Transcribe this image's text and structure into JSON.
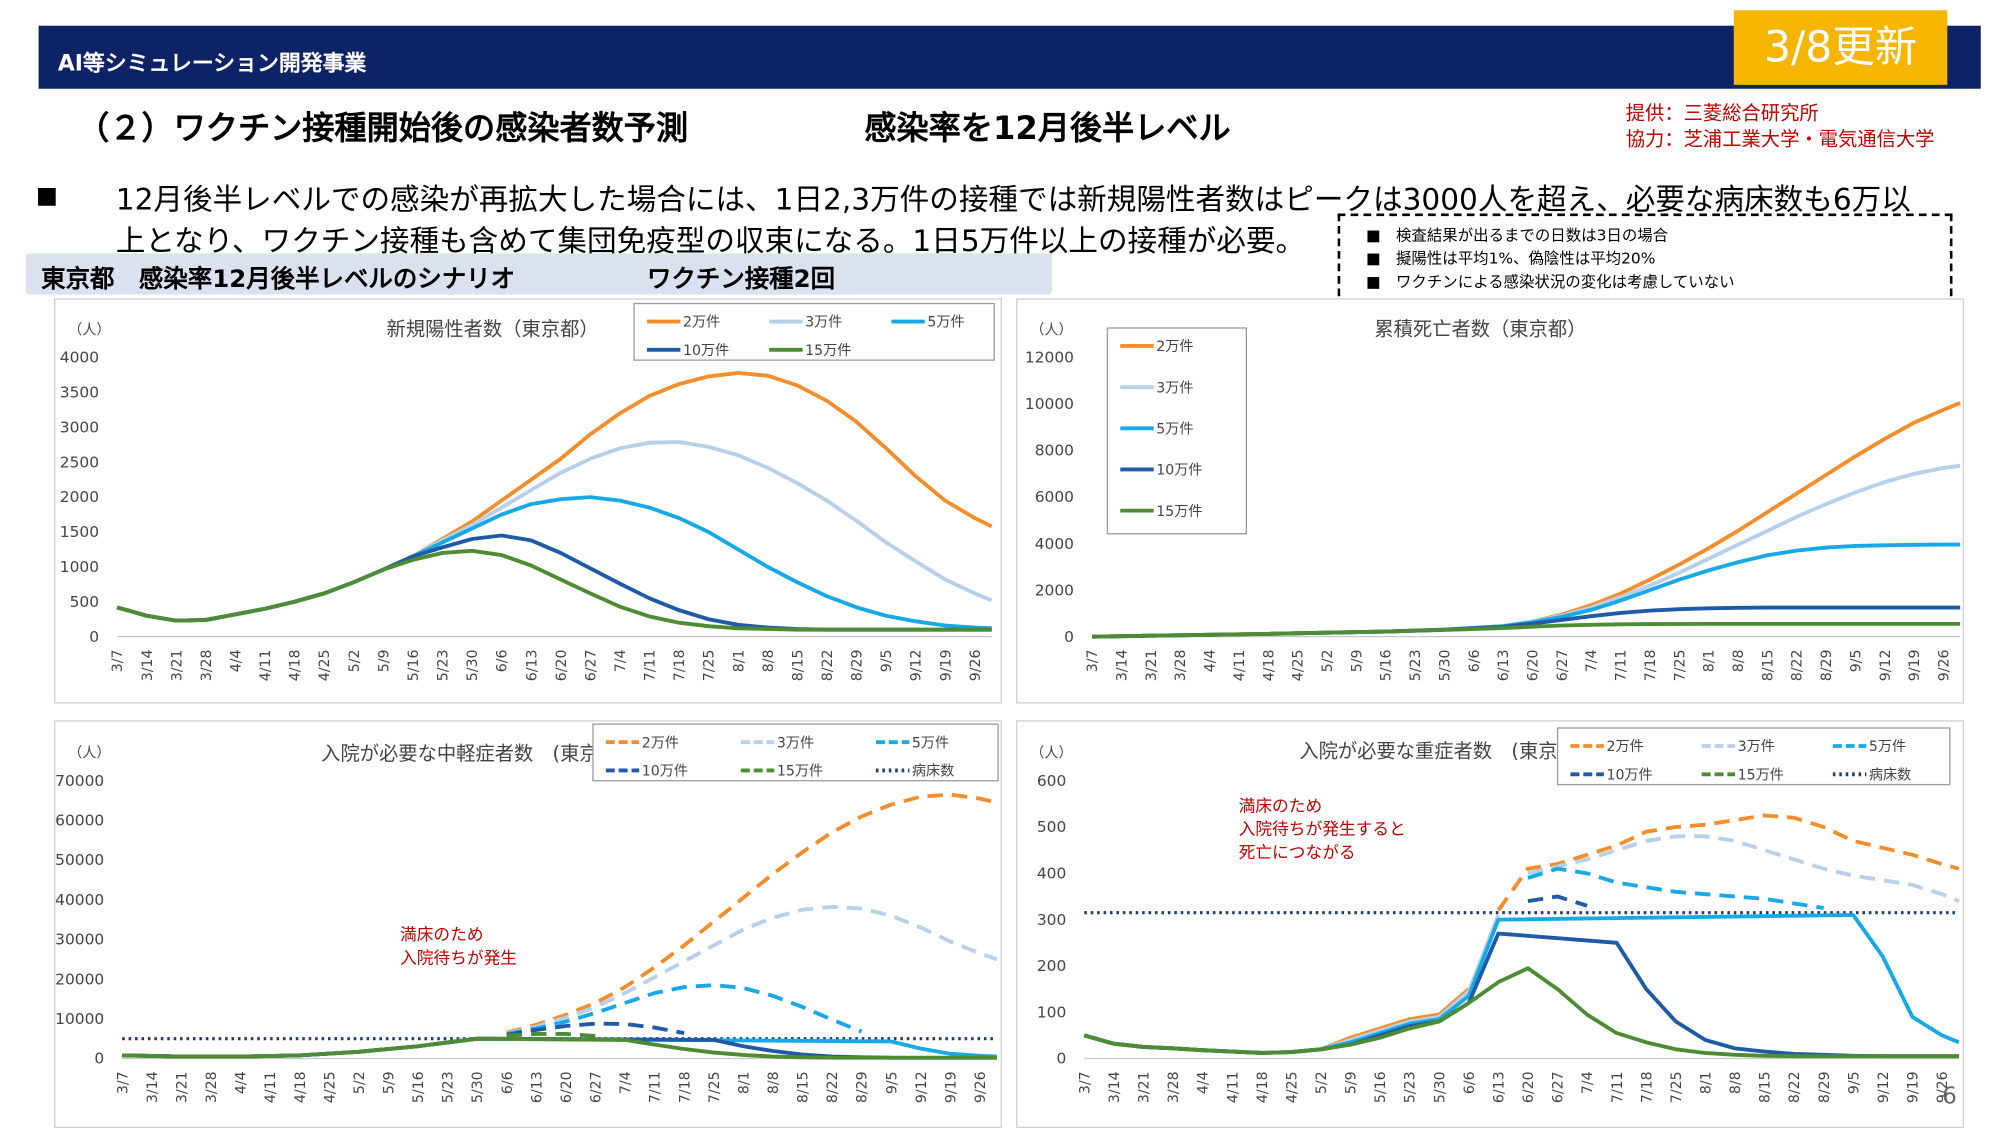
{
  "header": {
    "title": "AI等シミュレーション開発事業",
    "update_badge": "3/8更新"
  },
  "section": {
    "title": "（２）ワクチン接種開始後の感染者数予測",
    "subtitle": "感染率を12月後半レベル",
    "credit_provider": "提供：三菱総合研究所",
    "credit_cooperation": "協力：芝浦工業大学・電気通信大学"
  },
  "bullet": {
    "mark": "■",
    "line1": "12月後半レベルでの感染が再拡大した場合には、1日2,3万件の接種では新規陽性者数はピークは3000人を超え、必要な病床数も6万以",
    "line2": "上となり、ワクチン接種も含めて集団免疫型の収束になる。1日5万件以上の接種が必要。"
  },
  "notes": [
    "■　検査結果が出るまでの日数は3日の場合",
    "■　擬陽性は平均1%、偽陰性は平均20%",
    "■　ワクチンによる感染状況の変化は考慮していない"
  ],
  "scenario": {
    "label": "東京都　感染率12月後半レベルのシナリオ",
    "vaccine": "ワクチン接種2回"
  },
  "page_number": "6",
  "colors": {
    "s2": "#f28e2b",
    "s3": "#b7cfe8",
    "s5": "#17a9e5",
    "s10": "#1f5aa6",
    "s15": "#4e8c33",
    "beds": "#1f3a6e",
    "annotation": "#c00000"
  },
  "chart_data": [
    {
      "type": "line",
      "title": "新規陽性者数（東京都）",
      "ylabel": "（人）",
      "ylim": [
        0,
        4000
      ],
      "yticks": [
        0,
        500,
        1000,
        1500,
        2000,
        2500,
        3000,
        3500,
        4000
      ],
      "x_tick_labels": [
        "3/7",
        "3/14",
        "3/21",
        "3/28",
        "4/4",
        "4/11",
        "4/18",
        "4/25",
        "5/2",
        "5/9",
        "5/16",
        "5/23",
        "5/30",
        "6/6",
        "6/13",
        "6/20",
        "6/27",
        "7/4",
        "7/11",
        "7/18",
        "7/25",
        "8/1",
        "8/8",
        "8/15",
        "8/22",
        "8/29",
        "9/5",
        "9/12",
        "9/19",
        "9/26"
      ],
      "legend": [
        "2万件",
        "3万件",
        "5万件",
        "10万件",
        "15万件"
      ],
      "legend_position": "top-right",
      "grid": false,
      "x": [
        0,
        7,
        14,
        21,
        28,
        35,
        42,
        49,
        56,
        63,
        70,
        77,
        84,
        91,
        98,
        105,
        112,
        119,
        126,
        133,
        140,
        147,
        154,
        161,
        168,
        175,
        182,
        189,
        196,
        203,
        207
      ],
      "series": [
        {
          "name": "2万件",
          "key": "s2",
          "values": [
            420,
            300,
            230,
            240,
            320,
            400,
            500,
            620,
            780,
            960,
            1150,
            1400,
            1650,
            1950,
            2250,
            2550,
            2900,
            3200,
            3450,
            3620,
            3730,
            3780,
            3740,
            3600,
            3380,
            3080,
            2700,
            2300,
            1950,
            1700,
            1580
          ]
        },
        {
          "name": "3万件",
          "key": "s3",
          "values": [
            420,
            300,
            230,
            240,
            320,
            400,
            500,
            620,
            780,
            960,
            1150,
            1380,
            1600,
            1850,
            2100,
            2350,
            2550,
            2700,
            2780,
            2790,
            2720,
            2600,
            2420,
            2200,
            1950,
            1660,
            1350,
            1080,
            820,
            620,
            520
          ]
        },
        {
          "name": "5万件",
          "key": "s5",
          "values": [
            420,
            300,
            230,
            240,
            320,
            400,
            500,
            620,
            780,
            960,
            1150,
            1350,
            1550,
            1750,
            1900,
            1970,
            2000,
            1950,
            1850,
            1700,
            1500,
            1250,
            1000,
            780,
            580,
            420,
            300,
            220,
            160,
            130,
            120
          ]
        },
        {
          "name": "10万件",
          "key": "s10",
          "values": [
            420,
            300,
            230,
            240,
            320,
            400,
            500,
            620,
            780,
            960,
            1150,
            1280,
            1400,
            1450,
            1380,
            1200,
            980,
            760,
            550,
            380,
            250,
            170,
            130,
            110,
            100,
            100,
            100,
            100,
            100,
            100,
            100
          ]
        },
        {
          "name": "15万件",
          "key": "s15",
          "values": [
            420,
            300,
            230,
            240,
            320,
            400,
            500,
            620,
            780,
            960,
            1100,
            1200,
            1230,
            1170,
            1020,
            820,
            620,
            430,
            290,
            200,
            150,
            120,
            110,
            100,
            100,
            100,
            100,
            100,
            100,
            100,
            100
          ]
        }
      ]
    },
    {
      "type": "line",
      "title": "累積死亡者数（東京都）",
      "ylabel": "（人）",
      "ylim": [
        0,
        12000
      ],
      "yticks": [
        0,
        2000,
        4000,
        6000,
        8000,
        10000,
        12000
      ],
      "x_tick_labels": [
        "3/7",
        "3/14",
        "3/21",
        "3/28",
        "4/4",
        "4/11",
        "4/18",
        "4/25",
        "5/2",
        "5/9",
        "5/16",
        "5/23",
        "5/30",
        "6/6",
        "6/13",
        "6/20",
        "6/27",
        "7/4",
        "7/11",
        "7/18",
        "7/25",
        "8/1",
        "8/8",
        "8/15",
        "8/22",
        "8/29",
        "9/5",
        "9/12",
        "9/19",
        "9/26"
      ],
      "legend": [
        "2万件",
        "3万件",
        "5万件",
        "10万件",
        "15万件"
      ],
      "legend_position": "top-left",
      "grid": false,
      "x": [
        0,
        14,
        28,
        42,
        56,
        70,
        84,
        98,
        105,
        112,
        119,
        126,
        133,
        140,
        147,
        154,
        161,
        168,
        175,
        182,
        189,
        196,
        203,
        207
      ],
      "series": [
        {
          "name": "2万件",
          "key": "s2",
          "values": [
            0,
            40,
            80,
            120,
            170,
            220,
            300,
            450,
            650,
            950,
            1350,
            1850,
            2450,
            3100,
            3800,
            4550,
            5350,
            6150,
            6950,
            7750,
            8500,
            9200,
            9750,
            10050
          ]
        },
        {
          "name": "3万件",
          "key": "s3",
          "values": [
            0,
            40,
            80,
            120,
            170,
            220,
            300,
            450,
            650,
            900,
            1250,
            1700,
            2200,
            2750,
            3350,
            3950,
            4550,
            5150,
            5700,
            6200,
            6650,
            7000,
            7250,
            7350
          ]
        },
        {
          "name": "5万件",
          "key": "s5",
          "values": [
            0,
            40,
            80,
            120,
            170,
            220,
            300,
            450,
            620,
            850,
            1150,
            1550,
            2000,
            2450,
            2850,
            3200,
            3500,
            3700,
            3830,
            3900,
            3930,
            3950,
            3960,
            3960
          ]
        },
        {
          "name": "10万件",
          "key": "s10",
          "values": [
            0,
            40,
            80,
            120,
            170,
            220,
            300,
            420,
            560,
            720,
            880,
            1020,
            1120,
            1180,
            1220,
            1240,
            1250,
            1250,
            1250,
            1250,
            1250,
            1250,
            1250,
            1250
          ]
        },
        {
          "name": "15万件",
          "key": "s15",
          "values": [
            0,
            40,
            80,
            120,
            170,
            220,
            290,
            370,
            430,
            480,
            510,
            530,
            540,
            545,
            550,
            550,
            550,
            550,
            550,
            550,
            550,
            550,
            550,
            550
          ]
        }
      ]
    },
    {
      "type": "line",
      "title": "入院が必要な中軽症者数　(東京都)",
      "ylabel": "（人）",
      "ylim": [
        0,
        70000
      ],
      "yticks": [
        0,
        10000,
        20000,
        30000,
        40000,
        50000,
        60000,
        70000
      ],
      "x_tick_labels": [
        "3/7",
        "3/14",
        "3/21",
        "3/28",
        "4/4",
        "4/11",
        "4/18",
        "4/25",
        "5/2",
        "5/9",
        "5/16",
        "5/23",
        "5/30",
        "6/6",
        "6/13",
        "6/20",
        "6/27",
        "7/4",
        "7/11",
        "7/18",
        "7/25",
        "8/1",
        "8/8",
        "8/15",
        "8/22",
        "8/29",
        "9/5",
        "9/12",
        "9/19",
        "9/26"
      ],
      "legend": [
        "2万件",
        "3万件",
        "5万件",
        "10万件",
        "15万件",
        "病床数"
      ],
      "legend_position": "top-right",
      "grid": false,
      "beds_value": 5000,
      "beds_cutoff_x": 84,
      "annotation": [
        "満床のため",
        "入院待ちが発生"
      ],
      "x": [
        0,
        14,
        28,
        42,
        56,
        70,
        84,
        91,
        98,
        105,
        112,
        119,
        126,
        133,
        140,
        147,
        154,
        161,
        168,
        175,
        182,
        189,
        196,
        203,
        207
      ],
      "series": [
        {
          "name": "2万件",
          "key": "s2",
          "values": [
            800,
            500,
            500,
            800,
            1700,
            3100,
            5000,
            6500,
            8500,
            11000,
            14000,
            18000,
            23000,
            28500,
            34500,
            40500,
            46500,
            52000,
            57000,
            61000,
            64000,
            66000,
            66500,
            65500,
            64500
          ]
        },
        {
          "name": "3万件",
          "key": "s3",
          "values": [
            800,
            500,
            500,
            800,
            1700,
            3100,
            5000,
            6300,
            8000,
            10300,
            13000,
            16500,
            20500,
            24500,
            28500,
            32500,
            35500,
            37500,
            38200,
            37800,
            36000,
            33000,
            29500,
            26500,
            25000
          ]
        },
        {
          "name": "5万件",
          "key": "s5",
          "values": [
            800,
            500,
            500,
            800,
            1700,
            3100,
            5000,
            6200,
            7600,
            9300,
            11500,
            14000,
            16500,
            18000,
            18500,
            17800,
            15800,
            13000,
            9800,
            6800,
            4300,
            2500,
            1200,
            700,
            500
          ]
        },
        {
          "name": "10万件",
          "key": "s10",
          "values": [
            800,
            500,
            500,
            800,
            1700,
            3100,
            5000,
            6000,
            7200,
            8200,
            8800,
            8700,
            7800,
            6400,
            4700,
            3100,
            1900,
            1000,
            500,
            300,
            200,
            200,
            200,
            200,
            200
          ]
        },
        {
          "name": "15万件",
          "key": "s15",
          "values": [
            800,
            500,
            500,
            800,
            1700,
            3100,
            5000,
            5800,
            6200,
            6200,
            5700,
            4700,
            3500,
            2400,
            1500,
            900,
            500,
            300,
            200,
            200,
            200,
            200,
            200,
            200,
            200
          ]
        }
      ]
    },
    {
      "type": "line",
      "title": "入院が必要な重症者数　(東京都)",
      "ylabel": "（人）",
      "ylim": [
        0,
        600
      ],
      "yticks": [
        0,
        100,
        200,
        300,
        400,
        500,
        600
      ],
      "x_tick_labels": [
        "3/7",
        "3/14",
        "3/21",
        "3/28",
        "4/4",
        "4/11",
        "4/18",
        "4/25",
        "5/2",
        "5/9",
        "5/16",
        "5/23",
        "5/30",
        "6/6",
        "6/13",
        "6/20",
        "6/27",
        "7/4",
        "7/11",
        "7/18",
        "7/25",
        "8/1",
        "8/8",
        "8/15",
        "8/22",
        "8/29",
        "9/5",
        "9/12",
        "9/19",
        "9/26"
      ],
      "legend": [
        "2万件",
        "3万件",
        "5万件",
        "10万件",
        "15万件",
        "病床数"
      ],
      "legend_position": "top-right",
      "grid": false,
      "beds_value": 315,
      "annotation": [
        "満床のため",
        "入院待ちが発生すると",
        "死亡につながる"
      ],
      "x": [
        0,
        7,
        14,
        21,
        28,
        35,
        42,
        49,
        56,
        63,
        70,
        77,
        84,
        91,
        98,
        105,
        112,
        119,
        126,
        133,
        140,
        147,
        154,
        161,
        168,
        175,
        182,
        189,
        196,
        203,
        207
      ],
      "series": [
        {
          "name": "2万件",
          "key": "s2",
          "values": [
            50,
            32,
            25,
            22,
            18,
            15,
            12,
            14,
            20,
            45,
            65,
            85,
            95,
            150,
            320,
            410,
            420,
            440,
            460,
            490,
            500,
            505,
            515,
            525,
            520,
            500,
            470,
            455,
            440,
            420,
            410
          ]
        },
        {
          "name": "3万件",
          "key": "s3",
          "values": [
            50,
            32,
            25,
            22,
            18,
            15,
            12,
            14,
            20,
            40,
            60,
            80,
            90,
            145,
            310,
            400,
            415,
            430,
            450,
            470,
            480,
            480,
            470,
            450,
            430,
            410,
            395,
            385,
            375,
            355,
            340
          ]
        },
        {
          "name": "5万件",
          "key": "s5",
          "values": [
            50,
            32,
            25,
            22,
            18,
            15,
            12,
            14,
            20,
            35,
            55,
            75,
            85,
            135,
            300,
            390,
            410,
            400,
            380,
            370,
            360,
            355,
            350,
            345,
            335,
            325,
            310,
            220,
            90,
            50,
            35
          ]
        },
        {
          "name": "10万件",
          "key": "s10",
          "values": [
            50,
            32,
            25,
            22,
            18,
            15,
            12,
            14,
            20,
            30,
            50,
            70,
            80,
            120,
            270,
            340,
            350,
            330,
            250,
            150,
            80,
            40,
            22,
            15,
            10,
            8,
            6,
            5,
            5,
            5,
            5
          ]
        },
        {
          "name": "15万件",
          "key": "s15",
          "values": [
            50,
            32,
            25,
            22,
            18,
            15,
            12,
            14,
            20,
            30,
            45,
            65,
            80,
            120,
            165,
            195,
            150,
            95,
            55,
            35,
            20,
            12,
            8,
            6,
            5,
            5,
            5,
            5,
            5,
            5,
            5
          ]
        }
      ]
    }
  ]
}
